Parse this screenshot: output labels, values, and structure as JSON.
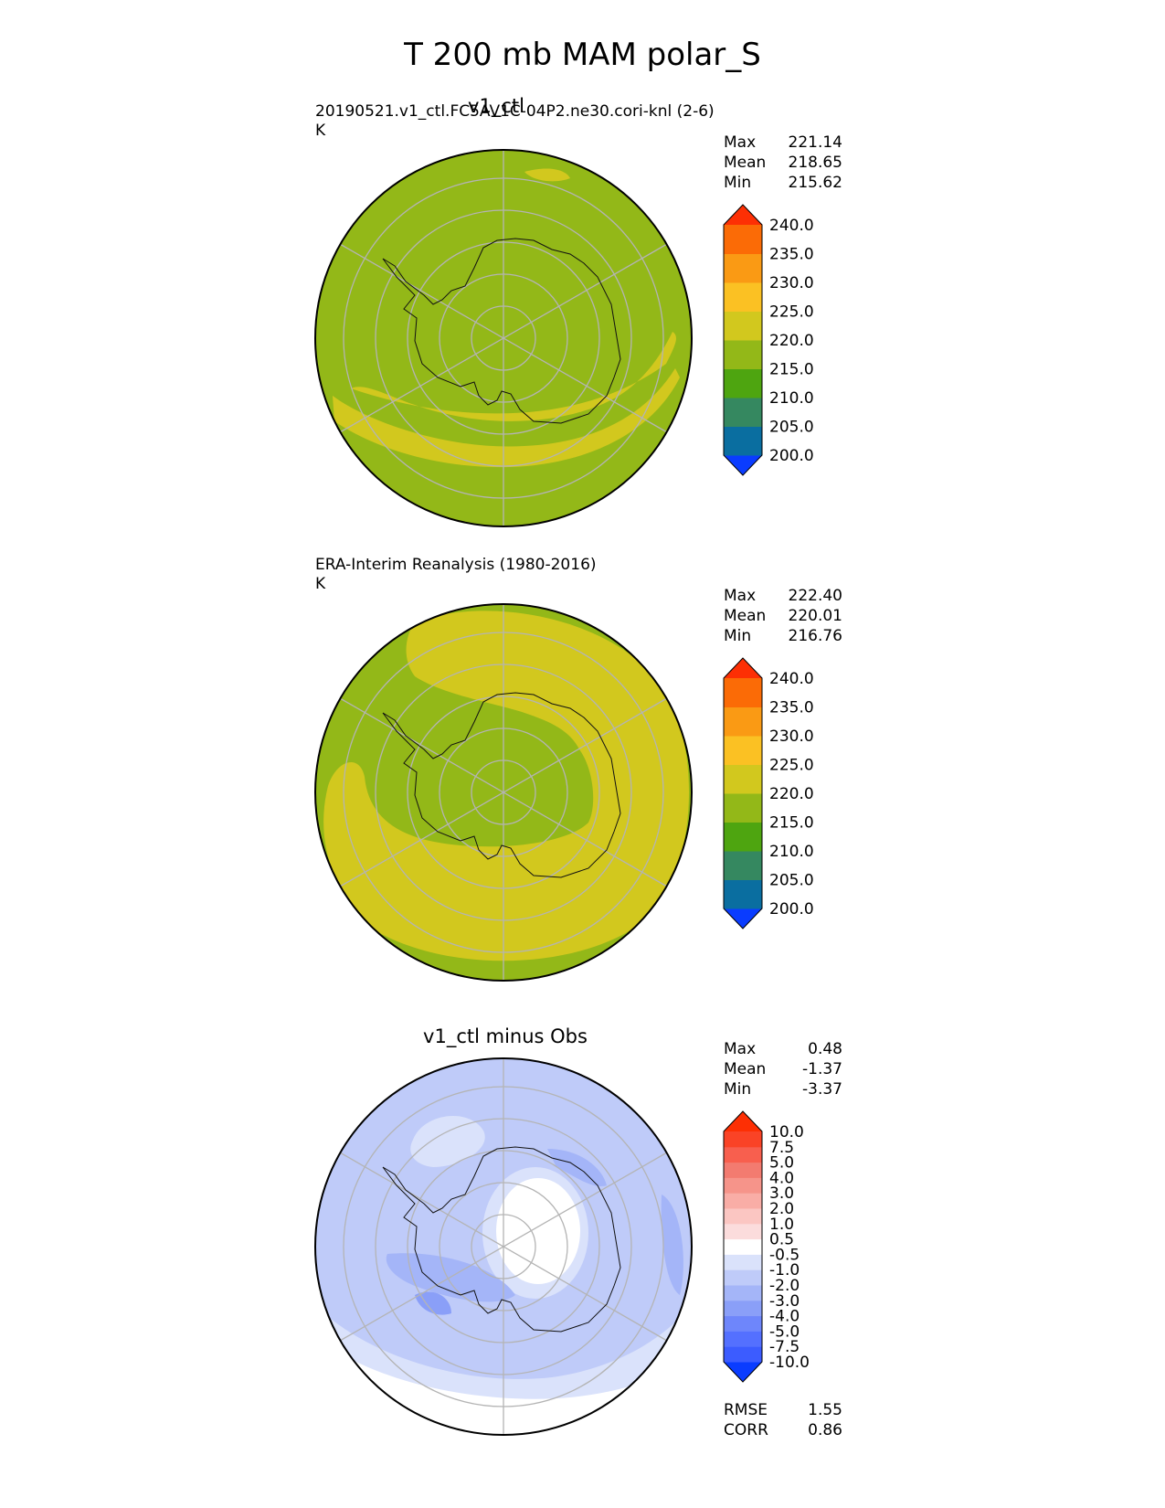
{
  "figure": {
    "title": "T 200 mb MAM polar_S"
  },
  "panels": [
    {
      "center_title": "v1_ctl",
      "left_title": "20190521.v1_ctl.FC5AV1C-04P2.ne30.cori-knl (2-6)",
      "units": "K",
      "stats": [
        {
          "label": "Max",
          "value": "221.14"
        },
        {
          "label": "Mean",
          "value": "218.65"
        },
        {
          "label": "Min",
          "value": "215.62"
        }
      ]
    },
    {
      "center_title": "",
      "left_title": "ERA-Interim Reanalysis (1980-2016)",
      "units": "K",
      "stats": [
        {
          "label": "Max",
          "value": "222.40"
        },
        {
          "label": "Mean",
          "value": "220.01"
        },
        {
          "label": "Min",
          "value": "216.76"
        }
      ]
    },
    {
      "center_title": "v1_ctl minus Obs",
      "left_title": "",
      "units": "",
      "stats": [
        {
          "label": "Max",
          "value": "0.48"
        },
        {
          "label": "Mean",
          "value": "-1.37"
        },
        {
          "label": "Min",
          "value": "-3.37"
        }
      ],
      "extra_stats": [
        {
          "label": "RMSE",
          "value": "1.55"
        },
        {
          "label": "CORR",
          "value": "0.86"
        }
      ]
    }
  ],
  "colorbars": {
    "temperature": {
      "ticks": [
        "200.0",
        "205.0",
        "210.0",
        "215.0",
        "220.0",
        "225.0",
        "230.0",
        "235.0",
        "240.0"
      ],
      "colors": [
        "#0a3cff",
        "#0a6ea0",
        "#358860",
        "#4ea510",
        "#93b818",
        "#d2c81e",
        "#fbc123",
        "#fa9a14",
        "#fb6b06",
        "#fd2f04"
      ]
    },
    "difference": {
      "ticks": [
        "-10.0",
        "-7.5",
        "-5.0",
        "-4.0",
        "-3.0",
        "-2.0",
        "-1.0",
        "-0.5",
        "0.5",
        "1.0",
        "2.0",
        "3.0",
        "4.0",
        "5.0",
        "7.5",
        "10.0"
      ],
      "colors": [
        "#0a3cff",
        "#3c5cff",
        "#5470ff",
        "#6e86fb",
        "#8a9ff8",
        "#a4b5f8",
        "#bfcbf9",
        "#dae2fb",
        "#ffffff",
        "#fbdcdc",
        "#fbc6c2",
        "#f9ada6",
        "#f6948a",
        "#f37b70",
        "#f85f4e",
        "#fa4326",
        "#fd2f04"
      ]
    }
  },
  "chart_data": [
    {
      "type": "heatmap",
      "title": "v1_ctl",
      "subtitle": "20190521.v1_ctl.FC5AV1C-04P2.ne30.cori-knl (2-6)",
      "units": "K",
      "projection": "south polar stereographic",
      "max": 221.14,
      "mean": 218.65,
      "min": 215.62,
      "levels": [
        200,
        205,
        210,
        215,
        220,
        225,
        230,
        235,
        240
      ],
      "colors": [
        "#0a3cff",
        "#0a6ea0",
        "#358860",
        "#4ea510",
        "#93b818",
        "#d2c81e",
        "#fbc123",
        "#fa9a14",
        "#fb6b06",
        "#fd2f04"
      ],
      "regions": [
        {
          "range": [
            215,
            220
          ],
          "color": "#93b818",
          "area": "most of domain incl. Antarctica"
        },
        {
          "range": [
            220,
            225
          ],
          "color": "#d2c81e",
          "area": "arc across lower half of map and small patch at top"
        }
      ]
    },
    {
      "type": "heatmap",
      "title": "ERA-Interim Reanalysis (1980-2016)",
      "units": "K",
      "projection": "south polar stereographic",
      "max": 222.4,
      "mean": 220.01,
      "min": 216.76,
      "levels": [
        200,
        205,
        210,
        215,
        220,
        225,
        230,
        235,
        240
      ],
      "colors": [
        "#0a3cff",
        "#0a6ea0",
        "#358860",
        "#4ea510",
        "#93b818",
        "#d2c81e",
        "#fbc123",
        "#fa9a14",
        "#fb6b06",
        "#fd2f04"
      ],
      "regions": [
        {
          "range": [
            215,
            220
          ],
          "color": "#93b818",
          "area": "polar cap and outer rim"
        },
        {
          "range": [
            220,
            225
          ],
          "color": "#d2c81e",
          "area": "broad ring surrounding the polar cap"
        }
      ]
    },
    {
      "type": "heatmap",
      "title": "v1_ctl minus Obs",
      "projection": "south polar stereographic",
      "max": 0.48,
      "mean": -1.37,
      "min": -3.37,
      "rmse": 1.55,
      "corr": 0.86,
      "levels": [
        -10,
        -7.5,
        -5,
        -4,
        -3,
        -2,
        -1,
        -0.5,
        0.5,
        1,
        2,
        3,
        4,
        5,
        7.5,
        10
      ],
      "colors": [
        "#0a3cff",
        "#3c5cff",
        "#5470ff",
        "#6e86fb",
        "#8a9ff8",
        "#a4b5f8",
        "#bfcbf9",
        "#dae2fb",
        "#ffffff",
        "#fbdcdc",
        "#fbc6c2",
        "#f9ada6",
        "#f6948a",
        "#f37b70",
        "#f85f4e",
        "#fa4326",
        "#fd2f04"
      ],
      "regions": [
        {
          "range": [
            -2,
            -1
          ],
          "color": "#bfcbf9",
          "area": "most of domain"
        },
        {
          "range": [
            -1,
            -0.5
          ],
          "color": "#dae2fb",
          "area": "outer belt and patch near top-left"
        },
        {
          "range": [
            -0.5,
            0.5
          ],
          "color": "#ffffff",
          "area": "near pole and lower-left edge"
        },
        {
          "range": [
            -3,
            -2
          ],
          "color": "#a4b5f8",
          "area": "patches over East Antarctica coast and right edge"
        },
        {
          "range": [
            -4,
            -3
          ],
          "color": "#8a9ff8",
          "area": "small patch west of Antarctic Peninsula"
        }
      ]
    }
  ]
}
